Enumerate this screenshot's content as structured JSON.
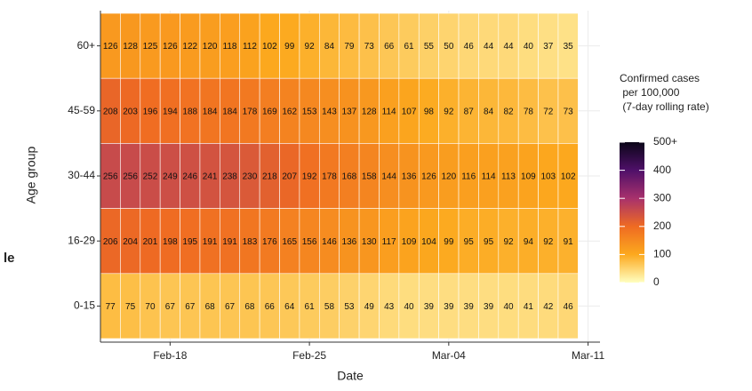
{
  "chart_data": {
    "type": "heatmap",
    "clipped_text": "le",
    "x_label": "Date",
    "y_label": "Age group",
    "legend_title": [
      "Confirmed cases",
      " per 100,000",
      " (7-day rolling rate)"
    ],
    "x": [
      15,
      16,
      17,
      18,
      19,
      20,
      21,
      22,
      23,
      24,
      25,
      26,
      27,
      28,
      29,
      30,
      31,
      32,
      33,
      34,
      35,
      36,
      37,
      38
    ],
    "xlim": [
      14.5,
      39.6
    ],
    "xticks": [
      {
        "value": 18,
        "label": "Feb-18"
      },
      {
        "value": 25,
        "label": "Feb-25"
      },
      {
        "value": 32,
        "label": "Mar-04"
      },
      {
        "value": 39,
        "label": "Mar-11"
      }
    ],
    "categories": [
      "60+",
      "45-59",
      "30-44",
      "16-29",
      "0-15"
    ],
    "series": [
      {
        "name": "60+",
        "values": [
          126,
          128,
          125,
          126,
          122,
          120,
          118,
          112,
          102,
          99,
          92,
          84,
          79,
          73,
          66,
          61,
          55,
          50,
          46,
          44,
          44,
          40,
          37,
          35
        ]
      },
      {
        "name": "45-59",
        "values": [
          208,
          203,
          196,
          194,
          188,
          184,
          184,
          178,
          169,
          162,
          153,
          143,
          137,
          128,
          114,
          107,
          98,
          92,
          87,
          84,
          82,
          78,
          72,
          73
        ]
      },
      {
        "name": "30-44",
        "values": [
          256,
          256,
          252,
          249,
          246,
          241,
          238,
          230,
          218,
          207,
          192,
          178,
          168,
          158,
          144,
          136,
          126,
          120,
          116,
          114,
          113,
          109,
          103,
          102
        ]
      },
      {
        "name": "16-29",
        "values": [
          206,
          204,
          201,
          198,
          195,
          191,
          191,
          183,
          176,
          165,
          156,
          146,
          136,
          130,
          117,
          109,
          104,
          99,
          95,
          95,
          92,
          94,
          92,
          91
        ]
      },
      {
        "name": "0-15",
        "values": [
          77,
          75,
          70,
          67,
          67,
          68,
          67,
          68,
          66,
          64,
          61,
          58,
          53,
          49,
          43,
          40,
          39,
          39,
          39,
          39,
          40,
          41,
          42,
          46
        ]
      }
    ],
    "clim": [
      0,
      500
    ],
    "cticks": [
      0,
      100,
      200,
      300,
      400,
      {
        "value": 500,
        "label": "500+"
      }
    ],
    "color_stops": [
      "#ffffc0",
      "#fca91e",
      "#ef6b22",
      "#a8316c",
      "#4f1069",
      "#0b0618"
    ],
    "grid": true
  }
}
